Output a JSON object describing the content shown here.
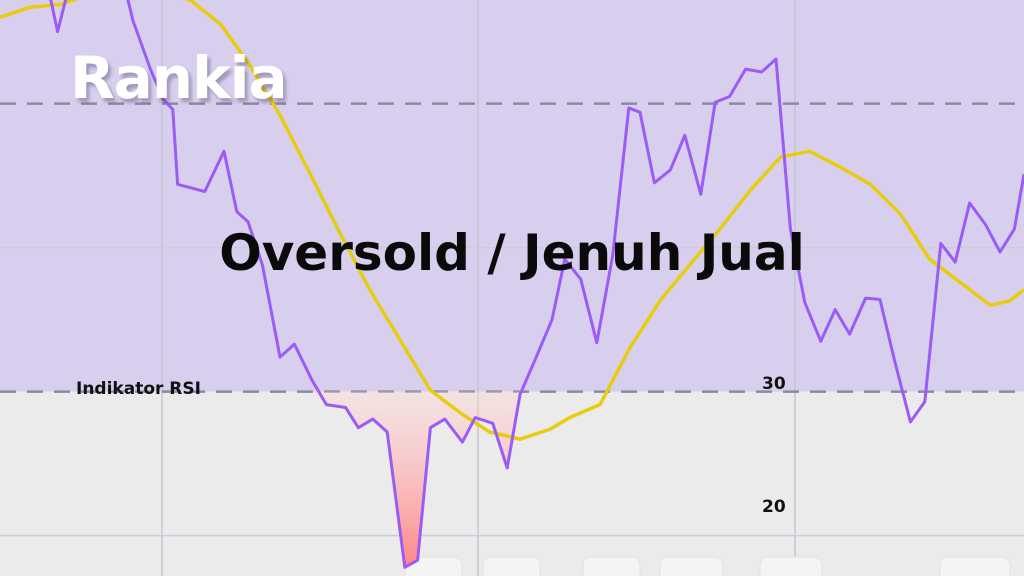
{
  "logo": "Rankia",
  "headline": "Oversold / Jenuh Jual",
  "indicator_label": "Indikator RSI",
  "colors": {
    "overbought_zone": "#d8cfee",
    "lower_zone": "#ebebeb",
    "rsi_line": "#9b5cf6",
    "signal_line": "#e8cc10",
    "oversold_fill": "#ff8585",
    "threshold_line": "#8a8aa0"
  },
  "chart_data": {
    "type": "line",
    "ylim": [
      17.2,
      57.2
    ],
    "xlim": [
      0,
      64
    ],
    "yticks": [
      {
        "value": 30,
        "label": "30"
      },
      {
        "value": 20,
        "label": "20"
      }
    ],
    "threshold_lines": [
      30,
      50
    ],
    "grid": true,
    "oversold_level": 30,
    "series": [
      {
        "key": "rsi",
        "points": [
          [
            3.1,
            57.6
          ],
          [
            3.6,
            55.0
          ],
          [
            4.1,
            57.2
          ],
          [
            5.9,
            60
          ],
          [
            8,
            57.2
          ],
          [
            8.3,
            55.8
          ],
          [
            9.4,
            52.4
          ],
          [
            10.2,
            50.3
          ],
          [
            10.8,
            49.6
          ],
          [
            11.1,
            44.4
          ],
          [
            12.8,
            43.9
          ],
          [
            14,
            46.7
          ],
          [
            14.8,
            42.5
          ],
          [
            15.5,
            41.8
          ],
          [
            16.4,
            38.8
          ],
          [
            17.5,
            32.4
          ],
          [
            18.4,
            33.3
          ],
          [
            19.5,
            30.8
          ],
          [
            20.4,
            29.1
          ],
          [
            21.6,
            28.9
          ],
          [
            22.4,
            27.5
          ],
          [
            23.3,
            28.1
          ],
          [
            24.2,
            27.2
          ],
          [
            25.3,
            17.8
          ],
          [
            26.1,
            18.3
          ],
          [
            26.9,
            27.5
          ],
          [
            27.8,
            28.1
          ],
          [
            28.9,
            26.5
          ],
          [
            29.7,
            28.2
          ],
          [
            30.8,
            27.8
          ],
          [
            31.7,
            24.7
          ],
          [
            32.5,
            29.8
          ],
          [
            33.4,
            32.1
          ],
          [
            34.5,
            35.0
          ],
          [
            35.3,
            39.2
          ],
          [
            36.3,
            37.8
          ],
          [
            37.3,
            33.4
          ],
          [
            38.3,
            39.5
          ],
          [
            39.3,
            49.7
          ],
          [
            40,
            49.4
          ],
          [
            40.9,
            44.5
          ],
          [
            41.9,
            45.4
          ],
          [
            42.8,
            47.8
          ],
          [
            43.8,
            43.7
          ],
          [
            44.7,
            50.1
          ],
          [
            45.6,
            50.5
          ],
          [
            46.6,
            52.4
          ],
          [
            47.6,
            52.2
          ],
          [
            48.5,
            53.1
          ],
          [
            49.4,
            41.3
          ],
          [
            50.3,
            36.2
          ],
          [
            51.3,
            33.5
          ],
          [
            52.2,
            35.7
          ],
          [
            53.1,
            34.0
          ],
          [
            54.1,
            36.5
          ],
          [
            55,
            36.4
          ],
          [
            55.9,
            32.2
          ],
          [
            56.9,
            27.9
          ],
          [
            57.8,
            29.3
          ],
          [
            58.8,
            40.3
          ],
          [
            59.7,
            39.0
          ],
          [
            60.6,
            43.1
          ],
          [
            61.6,
            41.6
          ],
          [
            62.5,
            39.7
          ],
          [
            63.4,
            41.3
          ],
          [
            64,
            45.1
          ]
        ]
      },
      {
        "key": "signal",
        "points": [
          [
            0,
            56.0
          ],
          [
            1.9,
            56.7
          ],
          [
            3.8,
            56.9
          ],
          [
            5.6,
            57.6
          ],
          [
            9.4,
            57.9
          ],
          [
            11.9,
            57.2
          ],
          [
            13.8,
            55.5
          ],
          [
            15.6,
            52.7
          ],
          [
            17.5,
            49.2
          ],
          [
            19.4,
            45.1
          ],
          [
            21.3,
            40.9
          ],
          [
            23.1,
            37.1
          ],
          [
            25,
            33.6
          ],
          [
            26.9,
            30.1
          ],
          [
            28.8,
            28.5
          ],
          [
            30.6,
            27.2
          ],
          [
            32.5,
            26.7
          ],
          [
            34.4,
            27.4
          ],
          [
            35.6,
            28.2
          ],
          [
            37.5,
            29.1
          ],
          [
            39.4,
            33.1
          ],
          [
            41.3,
            36.4
          ],
          [
            43.1,
            38.8
          ],
          [
            45,
            41.3
          ],
          [
            46.9,
            44.0
          ],
          [
            48.8,
            46.3
          ],
          [
            50.6,
            46.7
          ],
          [
            52.5,
            45.6
          ],
          [
            54.4,
            44.4
          ],
          [
            56.3,
            42.3
          ],
          [
            58.1,
            39.2
          ],
          [
            60,
            37.6
          ],
          [
            61.9,
            36.0
          ],
          [
            63.1,
            36.3
          ],
          [
            64,
            37.1
          ]
        ]
      }
    ],
    "oversold_fill_range": [
      19.5,
      32.5
    ]
  }
}
